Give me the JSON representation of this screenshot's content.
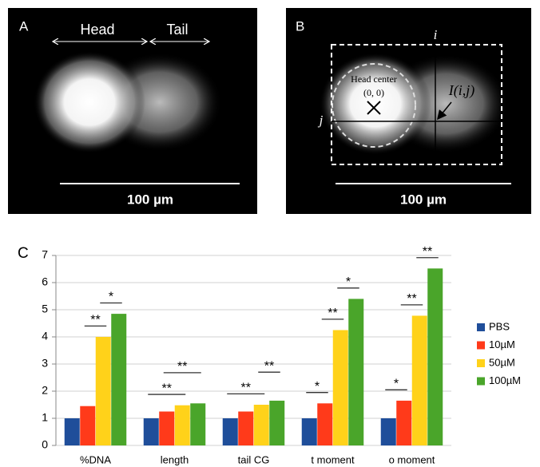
{
  "panels": [
    {
      "label": "A",
      "head": "Head",
      "tail": "Tail",
      "scale": "100 µm"
    },
    {
      "label": "B",
      "i": "i",
      "j": "j",
      "head_center": "Head center",
      "origin": "(0, 0)",
      "intensity": "I(i,j)",
      "scale": "100 µm"
    }
  ],
  "chart_data": {
    "type": "bar",
    "label": "C",
    "categories": [
      "%DNA",
      "length",
      "tail CG",
      "t moment",
      "o moment"
    ],
    "series": [
      {
        "name": "PBS",
        "color": "#1f4e9a",
        "values": [
          1,
          1,
          1,
          1,
          1
        ]
      },
      {
        "name": "10µM",
        "color": "#ff3a1a",
        "values": [
          1.45,
          1.25,
          1.25,
          1.55,
          1.65
        ]
      },
      {
        "name": "50µM",
        "color": "#ffd21a",
        "values": [
          4.0,
          1.48,
          1.5,
          4.25,
          4.78
        ]
      },
      {
        "name": "100µM",
        "color": "#4aa52a",
        "values": [
          4.85,
          1.55,
          1.65,
          5.4,
          6.52
        ]
      }
    ],
    "ylim": [
      0,
      7
    ],
    "yticks": [
      0,
      1,
      2,
      3,
      4,
      5,
      6,
      7
    ],
    "grid": true,
    "legend": "right",
    "annotations": [
      {
        "category": 0,
        "series": [
          1,
          2
        ],
        "label": "**"
      },
      {
        "category": 0,
        "series": [
          2,
          3
        ],
        "label": "*"
      },
      {
        "category": 1,
        "series": [
          0,
          2
        ],
        "label": "**"
      },
      {
        "category": 1,
        "series": [
          1,
          3
        ],
        "label": "**"
      },
      {
        "category": 2,
        "series": [
          0,
          2
        ],
        "label": "**"
      },
      {
        "category": 2,
        "series": [
          2,
          3
        ],
        "label": "**"
      },
      {
        "category": 3,
        "series": [
          0,
          1
        ],
        "label": "*"
      },
      {
        "category": 3,
        "series": [
          1,
          2
        ],
        "label": "**"
      },
      {
        "category": 3,
        "series": [
          2,
          3
        ],
        "label": "*"
      },
      {
        "category": 4,
        "series": [
          0,
          1
        ],
        "label": "*"
      },
      {
        "category": 4,
        "series": [
          1,
          2
        ],
        "label": "**"
      },
      {
        "category": 4,
        "series": [
          2,
          3
        ],
        "label": "**"
      }
    ]
  }
}
